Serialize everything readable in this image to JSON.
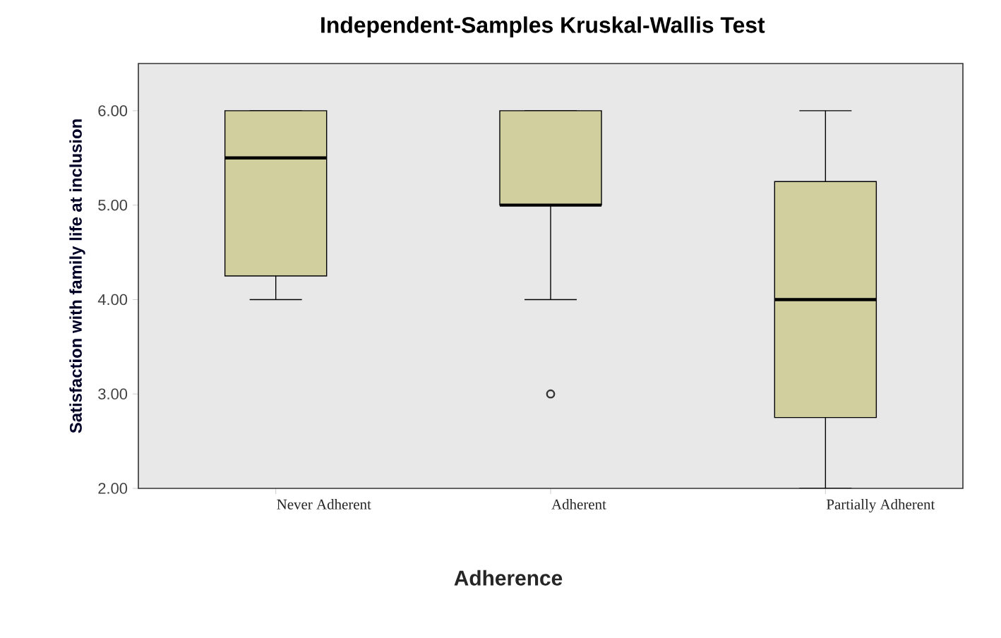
{
  "chart_data": {
    "type": "box",
    "title": "Independent-Samples Kruskal-Wallis Test",
    "xlabel": "Adherence",
    "ylabel": "Satisfaction with family life at inclusion",
    "categories": [
      "Never Adherent",
      "Adherent",
      "Partially Adherent"
    ],
    "series": [
      {
        "color": "#d2cf9f",
        "boxes": [
          {
            "low": 4,
            "q1": 4.25,
            "median": 5.5,
            "q3": 6,
            "high": 6
          },
          {
            "low": 4,
            "q1": 5,
            "median": 5,
            "q3": 6,
            "high": 6,
            "outliers": [
              3
            ]
          },
          {
            "low": 2,
            "q1": 2.75,
            "median": 4,
            "q3": 5.25,
            "high": 6
          }
        ]
      }
    ],
    "ylim": [
      2,
      6.5
    ],
    "yticks": [
      {
        "value": 2,
        "label": "2.00"
      },
      {
        "value": 3,
        "label": "3.00"
      },
      {
        "value": 4,
        "label": "4.00"
      },
      {
        "value": 5,
        "label": "5.00"
      },
      {
        "value": 6,
        "label": "6.00"
      }
    ]
  }
}
